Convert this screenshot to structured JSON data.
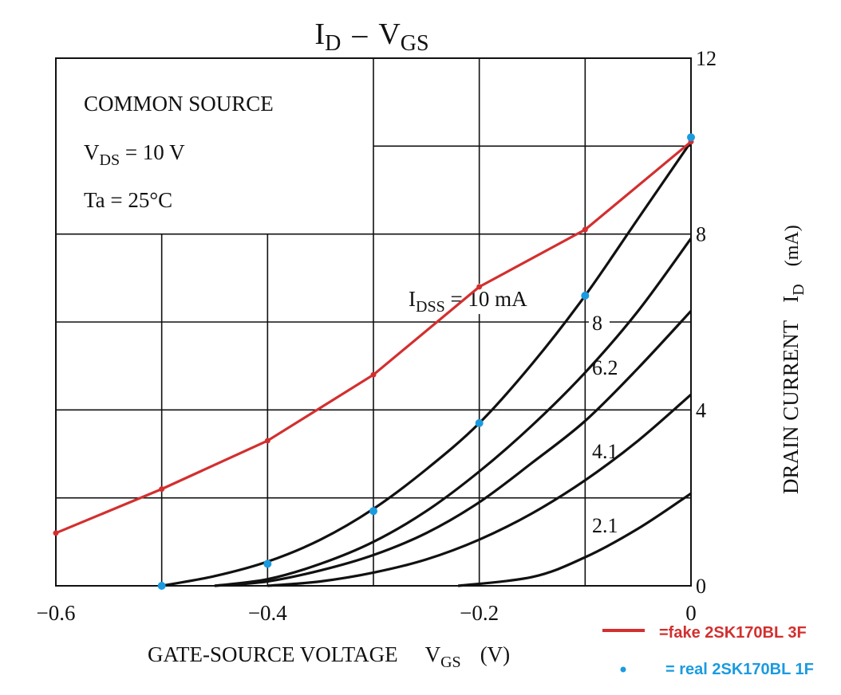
{
  "chart_data": {
    "type": "line",
    "title": {
      "main": "I",
      "sub1": "D",
      "dash": "–",
      "main2": "V",
      "sub2": "GS"
    },
    "xlabel": {
      "main": "GATE-SOURCE VOLTAGE",
      "v": "V",
      "sub": "GS",
      "unit": "(V)"
    },
    "ylabel": {
      "main": "DRAIN CURRENT",
      "i": "I",
      "sub": "D",
      "unit": "(mA)"
    },
    "xlim": [
      -0.6,
      0
    ],
    "ylim": [
      0,
      12
    ],
    "x_ticks": [
      {
        "value": -0.6,
        "label": "−0.6"
      },
      {
        "value": -0.4,
        "label": "−0.4"
      },
      {
        "value": -0.2,
        "label": "−0.2"
      },
      {
        "value": 0,
        "label": "0"
      }
    ],
    "y_ticks": [
      {
        "value": 12,
        "label": "12"
      },
      {
        "value": 8,
        "label": "8"
      },
      {
        "value": 4,
        "label": "4"
      },
      {
        "value": 0,
        "label": "0"
      }
    ],
    "grid": true,
    "conditions": [
      "COMMON SOURCE",
      "V",
      "DS",
      " = 10 V",
      "Ta = 25°C"
    ],
    "curve_labels": {
      "idss_prefix": "I",
      "idss_sub": "DSS",
      "idss_suffix": " = 10 mA",
      "labels": [
        "8",
        "6.2",
        "4.1",
        "2.1"
      ]
    },
    "series": [
      {
        "name": "10 mA",
        "color": "#111111",
        "x": [
          -0.5,
          -0.45,
          -0.4,
          -0.35,
          -0.3,
          -0.25,
          -0.2,
          -0.15,
          -0.1,
          -0.05,
          0
        ],
        "y": [
          0.0,
          0.22,
          0.55,
          1.05,
          1.75,
          2.65,
          3.7,
          5.05,
          6.6,
          8.35,
          10.1
        ]
      },
      {
        "name": "8",
        "color": "#111111",
        "x": [
          -0.45,
          -0.4,
          -0.35,
          -0.3,
          -0.25,
          -0.2,
          -0.15,
          -0.1,
          -0.05,
          0
        ],
        "y": [
          0.0,
          0.15,
          0.5,
          1.0,
          1.7,
          2.6,
          3.65,
          4.85,
          6.25,
          7.9
        ]
      },
      {
        "name": "6.2",
        "color": "#111111",
        "x": [
          -0.45,
          -0.4,
          -0.35,
          -0.3,
          -0.25,
          -0.2,
          -0.15,
          -0.1,
          -0.05,
          0
        ],
        "y": [
          0.0,
          0.1,
          0.35,
          0.7,
          1.2,
          1.9,
          2.8,
          3.75,
          4.95,
          6.25
        ]
      },
      {
        "name": "4.1",
        "color": "#111111",
        "x": [
          -0.4,
          -0.35,
          -0.3,
          -0.25,
          -0.2,
          -0.15,
          -0.1,
          -0.05,
          0
        ],
        "y": [
          0.0,
          0.1,
          0.3,
          0.6,
          1.05,
          1.65,
          2.4,
          3.3,
          4.35
        ]
      },
      {
        "name": "2.1",
        "color": "#111111",
        "x": [
          -0.22,
          -0.15,
          -0.1,
          -0.05,
          0
        ],
        "y": [
          0.0,
          0.2,
          0.65,
          1.3,
          2.1
        ]
      }
    ],
    "measured": [
      {
        "name": "=fake 2SK170BL 3F",
        "color": "#d32f2f",
        "style": "line",
        "x": [
          -0.6,
          -0.5,
          -0.4,
          -0.3,
          -0.2,
          -0.1,
          0
        ],
        "y": [
          1.2,
          2.2,
          3.3,
          4.8,
          6.8,
          8.1,
          10.1
        ]
      },
      {
        "name": "= real 2SK170BL 1F",
        "color": "#1a9be0",
        "style": "points",
        "x": [
          -0.5,
          -0.4,
          -0.3,
          -0.2,
          -0.1,
          0
        ],
        "y": [
          0.0,
          0.5,
          1.7,
          3.7,
          6.6,
          10.2
        ]
      }
    ]
  }
}
